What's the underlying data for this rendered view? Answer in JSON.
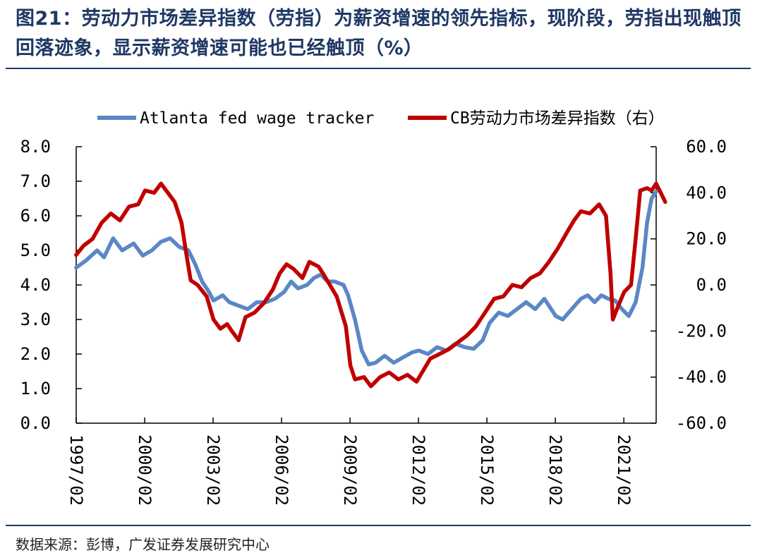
{
  "header": {
    "title": "图21：劳动力市场差异指数（劳指）为薪资增速的领先指标，现阶段，劳指出现触顶回落迹象，显示薪资增速可能也已经触顶（%）"
  },
  "footer": {
    "source": "数据来源：彭博，广发证券发展研究中心"
  },
  "chart_data": {
    "type": "line",
    "title": "",
    "xlabel": "",
    "ylabel_left": "",
    "ylabel_right": "",
    "x_range": [
      1997.083,
      2022.5
    ],
    "x_ticks": [
      "1997/02",
      "2000/02",
      "2003/02",
      "2006/02",
      "2009/02",
      "2012/02",
      "2015/02",
      "2018/02",
      "2021/02"
    ],
    "ylim_left": [
      0,
      8
    ],
    "ylim_right": [
      -60,
      60
    ],
    "yticks_left": [
      "0.0",
      "1.0",
      "2.0",
      "3.0",
      "4.0",
      "5.0",
      "6.0",
      "7.0",
      "8.0"
    ],
    "yticks_right": [
      "-60.0",
      "-40.0",
      "-20.0",
      "0.0",
      "20.0",
      "40.0",
      "60.0"
    ],
    "legend_position": "top",
    "grid": false,
    "series": [
      {
        "name": "Atlanta fed wage tracker",
        "axis": "left",
        "color": "#5a87c5",
        "points": [
          [
            1997.08,
            4.5
          ],
          [
            1997.5,
            4.7
          ],
          [
            1998.0,
            5.0
          ],
          [
            1998.3,
            4.8
          ],
          [
            1998.7,
            5.35
          ],
          [
            1999.1,
            5.0
          ],
          [
            1999.6,
            5.2
          ],
          [
            2000.0,
            4.85
          ],
          [
            2000.4,
            5.0
          ],
          [
            2000.8,
            5.25
          ],
          [
            2001.2,
            5.35
          ],
          [
            2001.6,
            5.1
          ],
          [
            2002.0,
            5.0
          ],
          [
            2002.3,
            4.6
          ],
          [
            2002.6,
            4.1
          ],
          [
            2002.9,
            3.8
          ],
          [
            2003.1,
            3.55
          ],
          [
            2003.5,
            3.7
          ],
          [
            2003.8,
            3.5
          ],
          [
            2004.2,
            3.4
          ],
          [
            2004.6,
            3.3
          ],
          [
            2005.0,
            3.5
          ],
          [
            2005.4,
            3.5
          ],
          [
            2005.8,
            3.6
          ],
          [
            2006.2,
            3.8
          ],
          [
            2006.5,
            4.1
          ],
          [
            2006.8,
            3.9
          ],
          [
            2007.2,
            4.0
          ],
          [
            2007.5,
            4.2
          ],
          [
            2007.8,
            4.3
          ],
          [
            2008.1,
            4.1
          ],
          [
            2008.4,
            4.1
          ],
          [
            2008.8,
            4.0
          ],
          [
            2009.0,
            3.7
          ],
          [
            2009.3,
            3.0
          ],
          [
            2009.6,
            2.1
          ],
          [
            2009.9,
            1.7
          ],
          [
            2010.2,
            1.75
          ],
          [
            2010.6,
            1.95
          ],
          [
            2011.0,
            1.75
          ],
          [
            2011.4,
            1.9
          ],
          [
            2011.8,
            2.05
          ],
          [
            2012.1,
            2.1
          ],
          [
            2012.5,
            2.0
          ],
          [
            2012.9,
            2.2
          ],
          [
            2013.3,
            2.1
          ],
          [
            2013.7,
            2.3
          ],
          [
            2014.1,
            2.2
          ],
          [
            2014.5,
            2.15
          ],
          [
            2014.9,
            2.4
          ],
          [
            2015.2,
            2.9
          ],
          [
            2015.6,
            3.2
          ],
          [
            2016.0,
            3.1
          ],
          [
            2016.4,
            3.3
          ],
          [
            2016.8,
            3.5
          ],
          [
            2017.2,
            3.3
          ],
          [
            2017.6,
            3.6
          ],
          [
            2017.9,
            3.3
          ],
          [
            2018.1,
            3.1
          ],
          [
            2018.4,
            3.0
          ],
          [
            2018.8,
            3.3
          ],
          [
            2019.2,
            3.6
          ],
          [
            2019.5,
            3.7
          ],
          [
            2019.8,
            3.5
          ],
          [
            2020.1,
            3.7
          ],
          [
            2020.4,
            3.6
          ],
          [
            2020.7,
            3.55
          ],
          [
            2021.0,
            3.3
          ],
          [
            2021.3,
            3.1
          ],
          [
            2021.6,
            3.5
          ],
          [
            2021.9,
            4.5
          ],
          [
            2022.1,
            5.8
          ],
          [
            2022.3,
            6.5
          ],
          [
            2022.5,
            6.7
          ]
        ]
      },
      {
        "name": "CB劳动力市场差异指数（右）",
        "axis": "right",
        "color": "#c00000",
        "points": [
          [
            1997.08,
            13.0
          ],
          [
            1997.4,
            17.0
          ],
          [
            1997.8,
            20.0
          ],
          [
            1998.2,
            27.0
          ],
          [
            1998.6,
            31.0
          ],
          [
            1999.0,
            28.0
          ],
          [
            1999.4,
            34.0
          ],
          [
            1999.8,
            35.0
          ],
          [
            2000.1,
            41.0
          ],
          [
            2000.5,
            40.0
          ],
          [
            2000.8,
            44.0
          ],
          [
            2001.1,
            40.0
          ],
          [
            2001.4,
            36.0
          ],
          [
            2001.7,
            27.0
          ],
          [
            2001.9,
            14.0
          ],
          [
            2002.1,
            2.0
          ],
          [
            2002.4,
            0.0
          ],
          [
            2002.8,
            -5.0
          ],
          [
            2003.1,
            -15.0
          ],
          [
            2003.4,
            -19.0
          ],
          [
            2003.7,
            -17.0
          ],
          [
            2003.9,
            -20.0
          ],
          [
            2004.2,
            -24.0
          ],
          [
            2004.5,
            -14.0
          ],
          [
            2004.9,
            -12.0
          ],
          [
            2005.3,
            -8.0
          ],
          [
            2005.7,
            -2.0
          ],
          [
            2006.0,
            5.0
          ],
          [
            2006.3,
            9.0
          ],
          [
            2006.6,
            7.0
          ],
          [
            2007.0,
            3.0
          ],
          [
            2007.3,
            10.0
          ],
          [
            2007.7,
            8.0
          ],
          [
            2007.9,
            5.0
          ],
          [
            2008.2,
            0.0
          ],
          [
            2008.5,
            -5.0
          ],
          [
            2008.9,
            -18.0
          ],
          [
            2009.1,
            -35.0
          ],
          [
            2009.3,
            -41.0
          ],
          [
            2009.7,
            -40.0
          ],
          [
            2010.0,
            -44.0
          ],
          [
            2010.4,
            -40.0
          ],
          [
            2010.8,
            -38.0
          ],
          [
            2011.2,
            -41.0
          ],
          [
            2011.6,
            -39.0
          ],
          [
            2012.0,
            -42.0
          ],
          [
            2012.3,
            -37.0
          ],
          [
            2012.6,
            -32.0
          ],
          [
            2013.0,
            -30.0
          ],
          [
            2013.4,
            -28.0
          ],
          [
            2013.8,
            -25.0
          ],
          [
            2014.2,
            -22.0
          ],
          [
            2014.6,
            -18.0
          ],
          [
            2015.0,
            -12.0
          ],
          [
            2015.4,
            -6.0
          ],
          [
            2015.8,
            -5.0
          ],
          [
            2016.2,
            0.0
          ],
          [
            2016.6,
            -1.0
          ],
          [
            2017.0,
            3.0
          ],
          [
            2017.4,
            5.0
          ],
          [
            2017.8,
            10.0
          ],
          [
            2018.2,
            16.0
          ],
          [
            2018.6,
            23.0
          ],
          [
            2018.9,
            28.0
          ],
          [
            2019.2,
            32.0
          ],
          [
            2019.6,
            31.0
          ],
          [
            2020.0,
            35.0
          ],
          [
            2020.3,
            30.0
          ],
          [
            2020.5,
            5.0
          ],
          [
            2020.6,
            -15.0
          ],
          [
            2020.8,
            -10.0
          ],
          [
            2021.1,
            -3.0
          ],
          [
            2021.4,
            0.0
          ],
          [
            2021.6,
            20.0
          ],
          [
            2021.8,
            41.0
          ],
          [
            2022.1,
            42.0
          ],
          [
            2022.3,
            41.0
          ],
          [
            2022.5,
            44.0
          ],
          [
            2022.7,
            40.0
          ],
          [
            2022.9,
            36.0
          ]
        ]
      }
    ]
  }
}
